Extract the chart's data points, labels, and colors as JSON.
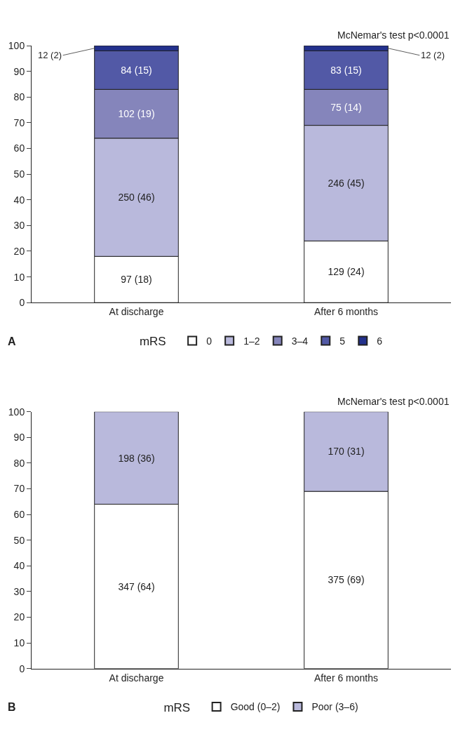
{
  "chart_data": [
    {
      "type": "bar",
      "stacked": true,
      "categories": [
        "At discharge",
        "After 6 months"
      ],
      "ylim": [
        0,
        100
      ],
      "yticks": [
        0,
        10,
        20,
        30,
        40,
        50,
        60,
        70,
        80,
        90,
        100
      ],
      "legend": "bottom",
      "legend_title": "mRS",
      "annotations": [
        "McNemar's test p<0.0001",
        "A"
      ],
      "series": [
        {
          "name": "0",
          "color": "#ffffff",
          "values": [
            18,
            24
          ],
          "value_labels": [
            "97 (18)",
            "129 (24)"
          ]
        },
        {
          "name": "1–2",
          "color": "#b9b9dc",
          "values": [
            46,
            45
          ],
          "value_labels": [
            "250 (46)",
            "246 (45)"
          ]
        },
        {
          "name": "3–4",
          "color": "#8585bb",
          "values": [
            19,
            14
          ],
          "value_labels": [
            "102 (19)",
            "75 (14)"
          ]
        },
        {
          "name": "5",
          "color": "#5259a6",
          "values": [
            15,
            15
          ],
          "value_labels": [
            "84 (15)",
            "83 (15)"
          ]
        },
        {
          "name": "6",
          "color": "#23318c",
          "values": [
            2,
            2
          ],
          "value_labels": [
            "12 (2)",
            "12 (2)"
          ]
        }
      ]
    },
    {
      "type": "bar",
      "stacked": true,
      "categories": [
        "At discharge",
        "After 6 months"
      ],
      "ylim": [
        0,
        100
      ],
      "yticks": [
        0,
        10,
        20,
        30,
        40,
        50,
        60,
        70,
        80,
        90,
        100
      ],
      "legend": "bottom",
      "legend_title": "mRS",
      "annotations": [
        "McNemar's test p<0.0001",
        "B"
      ],
      "series": [
        {
          "name": "Good (0–2)",
          "color": "#ffffff",
          "values": [
            64,
            69
          ],
          "value_labels": [
            "347 (64)",
            "375 (69)"
          ]
        },
        {
          "name": "Poor (3–6)",
          "color": "#b9b9dc",
          "values": [
            36,
            31
          ],
          "value_labels": [
            "198 (36)",
            "170 (31)"
          ]
        }
      ]
    }
  ]
}
